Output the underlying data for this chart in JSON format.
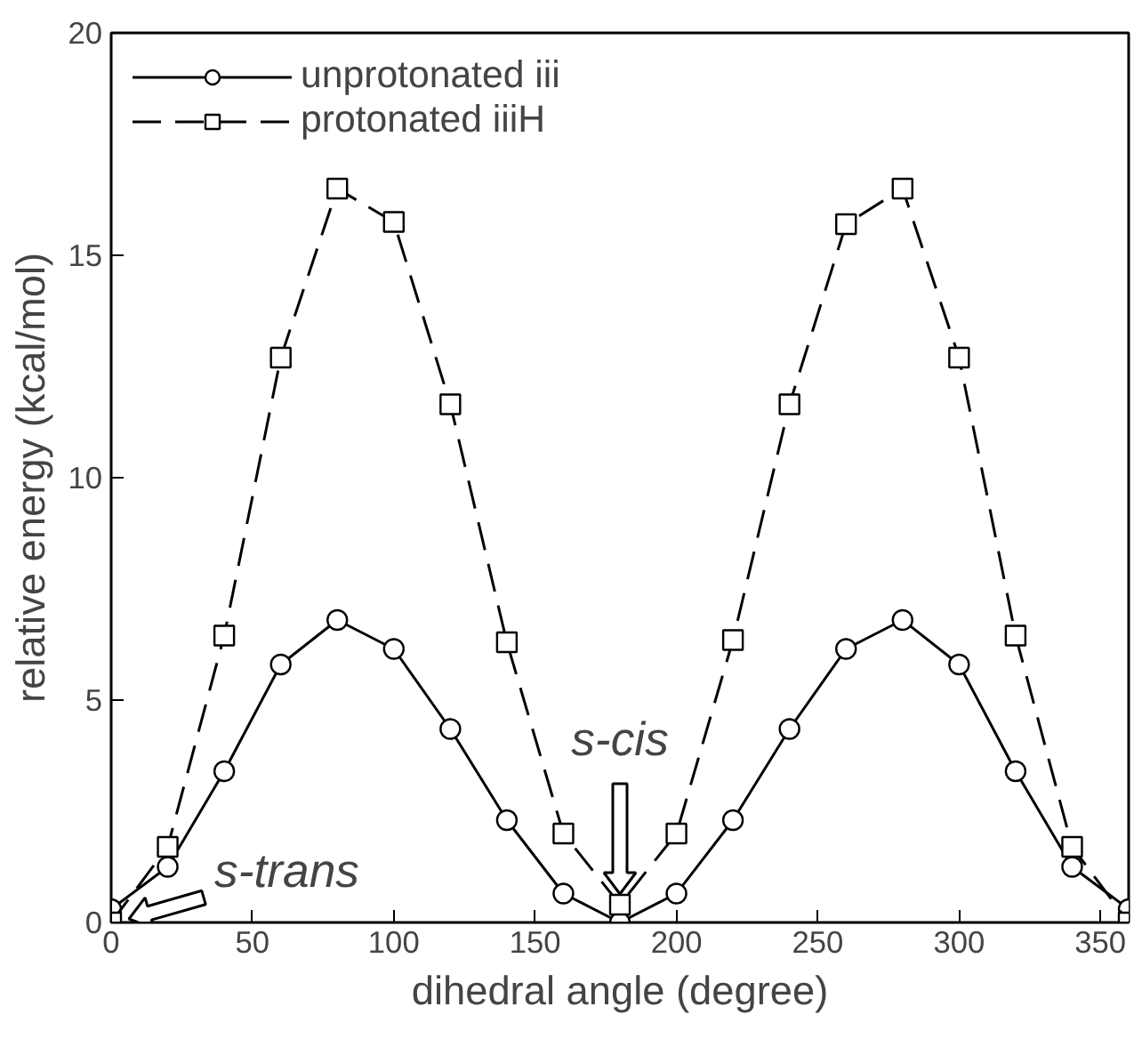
{
  "chart_data": {
    "type": "line",
    "xlabel": "dihedral angle (degree)",
    "ylabel": "relative energy (kcal/mol)",
    "x": [
      0,
      20,
      40,
      60,
      80,
      100,
      120,
      140,
      160,
      180,
      200,
      220,
      240,
      260,
      280,
      300,
      320,
      340,
      360
    ],
    "series": [
      {
        "name": "unprotonated iii",
        "color": "#000000",
        "marker": "circle",
        "line_style": "solid",
        "values": [
          0.3,
          1.25,
          3.4,
          5.8,
          6.8,
          6.15,
          4.35,
          2.3,
          0.65,
          0,
          0.65,
          2.3,
          4.35,
          6.15,
          6.8,
          5.8,
          3.4,
          1.25,
          0.3
        ]
      },
      {
        "name": "protonated iiiH",
        "color": "#000000",
        "marker": "square",
        "line_style": "dashed",
        "values": [
          0,
          1.7,
          6.45,
          12.7,
          16.5,
          15.75,
          11.65,
          6.3,
          2.0,
          0.4,
          2.0,
          6.35,
          11.65,
          15.7,
          16.5,
          12.7,
          6.45,
          1.7,
          0
        ]
      }
    ],
    "xlim": [
      0,
      360
    ],
    "ylim": [
      0,
      20
    ],
    "xticks": [
      0,
      50,
      100,
      150,
      200,
      250,
      300,
      350
    ],
    "yticks": [
      0,
      5,
      10,
      15,
      20
    ],
    "annotations": [
      "s-cis",
      "s-trans"
    ],
    "grid": false,
    "legend": "top left"
  }
}
